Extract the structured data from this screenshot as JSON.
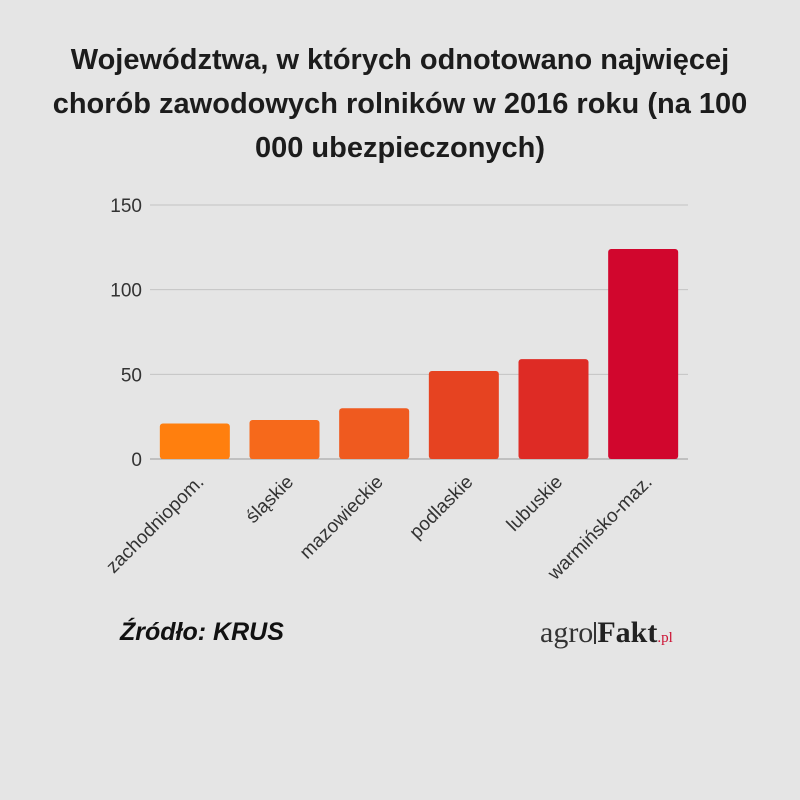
{
  "chart_data": {
    "type": "bar",
    "title": "Województwa, w których odnotowano najwięcej chorób zawodowych rolników w 2016 roku (na 100 000 ubezpieczonych)",
    "categories": [
      "zachodniopom.",
      "śląskie",
      "mazowieckie",
      "podlaskie",
      "lubuskie",
      "warmińsko-maz."
    ],
    "values": [
      21,
      23,
      30,
      52,
      59,
      124
    ],
    "colors": [
      "#ff7f0e",
      "#f6691b",
      "#ef5a1f",
      "#e64321",
      "#de2b25",
      "#d1062d"
    ],
    "ylim": [
      0,
      150
    ],
    "yticks": [
      0,
      50,
      100,
      150
    ],
    "grid": true,
    "legend": "none",
    "xlabel": "",
    "ylabel": ""
  },
  "source": "Źródło: KRUS",
  "logo": {
    "part1": "agro",
    "part2": "Fakt",
    "part3": ".pl"
  }
}
